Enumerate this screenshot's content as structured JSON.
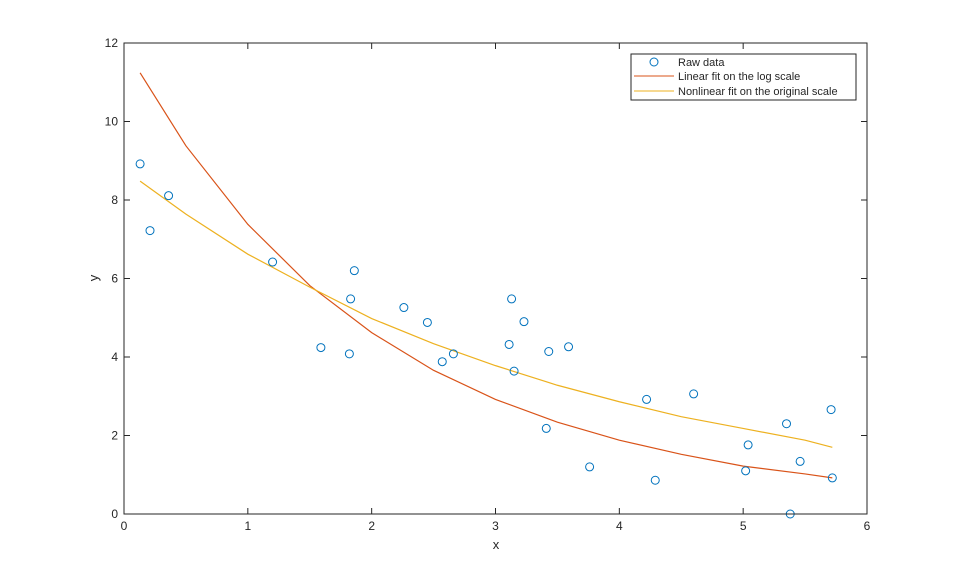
{
  "chart_data": {
    "type": "scatter",
    "title": "",
    "xlabel": "x",
    "ylabel": "y",
    "xlim": [
      0,
      6
    ],
    "ylim": [
      0,
      12
    ],
    "xticks": [
      0,
      1,
      2,
      3,
      4,
      5,
      6
    ],
    "yticks": [
      0,
      2,
      4,
      6,
      8,
      10,
      12
    ],
    "grid": false,
    "legend_position": "top-right",
    "series": [
      {
        "name": "Raw data",
        "kind": "markers",
        "marker": "circle",
        "color": "#0072BD",
        "points": [
          [
            0.13,
            8.92
          ],
          [
            0.21,
            7.22
          ],
          [
            0.36,
            8.11
          ],
          [
            1.2,
            6.42
          ],
          [
            1.59,
            4.24
          ],
          [
            1.82,
            4.08
          ],
          [
            1.83,
            5.48
          ],
          [
            1.86,
            6.2
          ],
          [
            2.26,
            5.26
          ],
          [
            2.45,
            4.88
          ],
          [
            2.57,
            3.88
          ],
          [
            2.66,
            4.08
          ],
          [
            3.11,
            4.32
          ],
          [
            3.13,
            5.48
          ],
          [
            3.15,
            3.64
          ],
          [
            3.23,
            4.9
          ],
          [
            3.41,
            2.18
          ],
          [
            3.43,
            4.14
          ],
          [
            3.59,
            4.26
          ],
          [
            3.76,
            1.2
          ],
          [
            4.22,
            2.92
          ],
          [
            4.29,
            0.86
          ],
          [
            4.6,
            3.06
          ],
          [
            5.02,
            1.1
          ],
          [
            5.04,
            1.76
          ],
          [
            5.35,
            2.3
          ],
          [
            5.38,
            0.0
          ],
          [
            5.46,
            1.34
          ],
          [
            5.71,
            2.66
          ],
          [
            5.72,
            0.92
          ]
        ]
      },
      {
        "name": "Linear fit on the log scale",
        "kind": "curve",
        "color": "#D95319",
        "points": [
          [
            0.13,
            11.24
          ],
          [
            0.5,
            9.38
          ],
          [
            1.0,
            7.38
          ],
          [
            1.5,
            5.82
          ],
          [
            2.0,
            4.62
          ],
          [
            2.5,
            3.66
          ],
          [
            3.0,
            2.92
          ],
          [
            3.5,
            2.34
          ],
          [
            4.0,
            1.88
          ],
          [
            4.5,
            1.52
          ],
          [
            5.0,
            1.22
          ],
          [
            5.5,
            1.02
          ],
          [
            5.72,
            0.92
          ]
        ]
      },
      {
        "name": "Nonlinear fit on the original scale",
        "kind": "curve",
        "color": "#EDB120",
        "points": [
          [
            0.13,
            8.48
          ],
          [
            0.5,
            7.64
          ],
          [
            1.0,
            6.62
          ],
          [
            1.5,
            5.78
          ],
          [
            2.0,
            4.98
          ],
          [
            2.5,
            4.34
          ],
          [
            3.0,
            3.78
          ],
          [
            3.5,
            3.28
          ],
          [
            4.0,
            2.86
          ],
          [
            4.5,
            2.48
          ],
          [
            5.0,
            2.18
          ],
          [
            5.5,
            1.88
          ],
          [
            5.72,
            1.7
          ]
        ]
      }
    ]
  }
}
